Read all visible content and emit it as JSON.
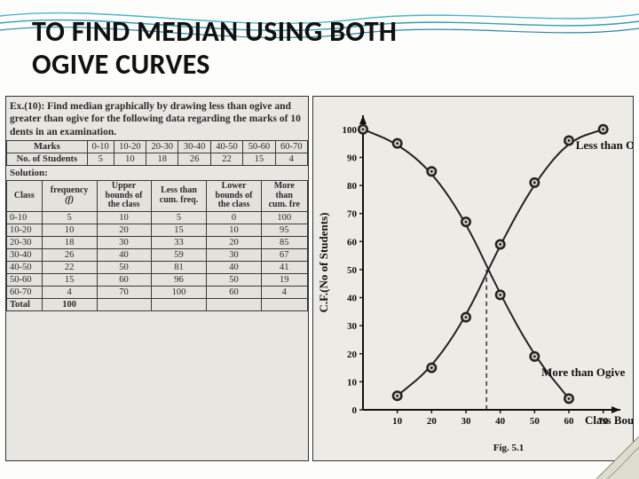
{
  "title_line1": "TO FIND MEDIAN USING BOTH",
  "title_line2": "OGIVE CURVES",
  "decor": {
    "wave_colors": [
      "#4fb3c9",
      "#3a9bb5",
      "#2d86a3"
    ],
    "corner_fill": "#dcdccf",
    "corner_edge": "#8e8e85"
  },
  "exercise": {
    "pre": "Ex.(10): Find median graphically by drawing less than ogive and",
    "line2": "greater than ogive for the following data regarding the marks of 10",
    "line3": "dents in an examination."
  },
  "marks_table": {
    "header": "Marks",
    "row_label": "No. of Students",
    "bins": [
      "0-10",
      "10-20",
      "20-30",
      "30-40",
      "40-50",
      "50-60",
      "60-70"
    ],
    "counts": [
      "5",
      "10",
      "18",
      "26",
      "22",
      "15",
      "4"
    ]
  },
  "solution_label": "Solution:",
  "freq_table": {
    "headers": [
      "Class",
      "frequency\n(f)",
      "Upper\nbounds of\nthe class",
      "Less than\ncum. freq.",
      "Lower\nbounds of\nthe class",
      "More\nthan\ncum. fre"
    ],
    "rows": [
      [
        "0-10",
        "5",
        "10",
        "5",
        "0",
        "100"
      ],
      [
        "10-20",
        "10",
        "20",
        "15",
        "10",
        "95"
      ],
      [
        "20-30",
        "18",
        "30",
        "33",
        "20",
        "85"
      ],
      [
        "30-40",
        "26",
        "40",
        "59",
        "30",
        "67"
      ],
      [
        "40-50",
        "22",
        "50",
        "81",
        "40",
        "41"
      ],
      [
        "50-60",
        "15",
        "60",
        "96",
        "50",
        "19"
      ],
      [
        "60-70",
        "4",
        "70",
        "100",
        "60",
        "4"
      ]
    ],
    "total_row": [
      "Total",
      "100",
      "",
      "",
      "",
      ""
    ]
  },
  "chart": {
    "type": "ogive-dual-line",
    "background_color": "#ecebe5",
    "axis_color": "#111111",
    "line_color": "#222222",
    "line_width": 2,
    "marker_outer": "#222222",
    "marker_inner": "#cfcec6",
    "marker_radius": 5,
    "dashed_color": "#222222",
    "x_ticks": [
      10,
      20,
      30,
      40,
      50,
      60,
      70
    ],
    "y_ticks": [
      0,
      10,
      20,
      30,
      40,
      50,
      60,
      70,
      80,
      90,
      100
    ],
    "xlim": [
      0,
      75
    ],
    "ylim": [
      0,
      105
    ],
    "x_axis_label": "Class Boundaries",
    "y_axis_label": "C.F.(No of Students)",
    "less_than": {
      "label": "Less than Ogive",
      "points": [
        [
          10,
          5
        ],
        [
          20,
          15
        ],
        [
          30,
          33
        ],
        [
          40,
          59
        ],
        [
          50,
          81
        ],
        [
          60,
          96
        ],
        [
          70,
          100
        ]
      ]
    },
    "more_than": {
      "label": "More than Ogive",
      "points": [
        [
          0,
          100
        ],
        [
          10,
          95
        ],
        [
          20,
          85
        ],
        [
          30,
          67
        ],
        [
          40,
          41
        ],
        [
          50,
          19
        ],
        [
          60,
          4
        ]
      ]
    },
    "median_x": 36,
    "fig_caption": "Fig. 5.1"
  }
}
